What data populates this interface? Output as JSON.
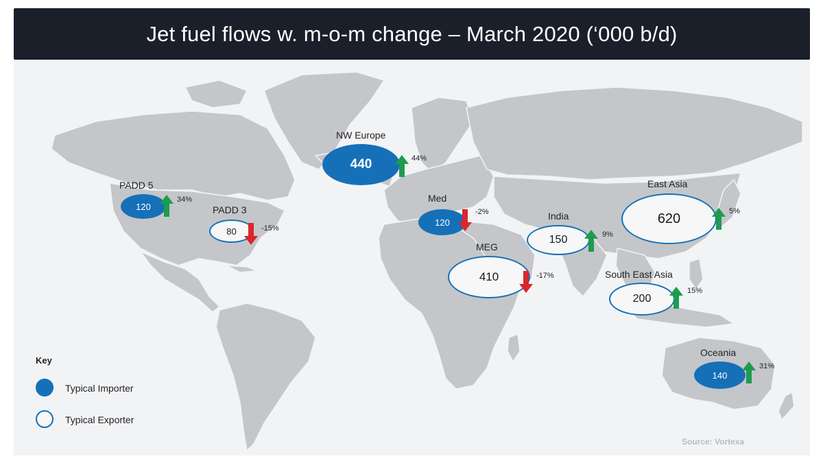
{
  "title": "Jet fuel flows w. m-o-m change – March 2020 (‘000 b/d)",
  "source": "Source: Vortexa",
  "colors": {
    "importer": "#1670b8",
    "exporter_fill": "#f7f7f7",
    "exporter_border": "#1670b8",
    "increase_arrow": "#1e9b4f",
    "decrease_arrow": "#d9262e",
    "land": "#c4c6c9",
    "ocean": "#f2f3f5",
    "title_bg": "#1b1f2a"
  },
  "key": {
    "title": "Key",
    "importer_label": "Typical Importer",
    "exporter_label": "Typical Exporter"
  },
  "regions": {
    "nw_europe": {
      "label": "NW Europe",
      "value": "440",
      "type": "importer",
      "change": "44%",
      "direction": "up"
    },
    "padd5": {
      "label": "PADD 5",
      "value": "120",
      "type": "importer",
      "change": "34%",
      "direction": "up"
    },
    "padd3": {
      "label": "PADD 3",
      "value": "80",
      "type": "exporter",
      "change": "-15%",
      "direction": "down"
    },
    "med": {
      "label": "Med",
      "value": "120",
      "type": "importer",
      "change": "-2%",
      "direction": "down"
    },
    "india": {
      "label": "India",
      "value": "150",
      "type": "exporter",
      "change": "9%",
      "direction": "up"
    },
    "east_asia": {
      "label": "East Asia",
      "value": "620",
      "type": "exporter",
      "change": "5%",
      "direction": "up"
    },
    "meg": {
      "label": "MEG",
      "value": "410",
      "type": "exporter",
      "change": "-17%",
      "direction": "down"
    },
    "south_east_asia": {
      "label": "South East Asia",
      "value": "200",
      "type": "exporter",
      "change": "15%",
      "direction": "up"
    },
    "oceania": {
      "label": "Oceania",
      "value": "140",
      "type": "importer",
      "change": "31%",
      "direction": "up"
    }
  }
}
